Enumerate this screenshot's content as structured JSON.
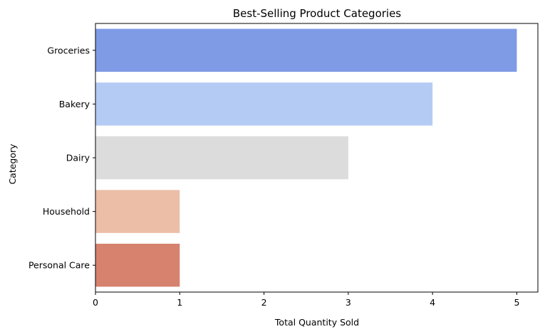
{
  "chart_data": {
    "type": "bar",
    "orientation": "horizontal",
    "title": "Best-Selling Product Categories",
    "xlabel": "Total Quantity Sold",
    "ylabel": "Category",
    "categories": [
      "Groceries",
      "Bakery",
      "Dairy",
      "Household",
      "Personal Care"
    ],
    "values": [
      5,
      4,
      3,
      1,
      1
    ],
    "colors": [
      "#7f9be6",
      "#b4cbf4",
      "#dcdcdc",
      "#ecbea7",
      "#d7826f"
    ],
    "xlim": [
      0,
      5.25
    ],
    "xticks": [
      0,
      1,
      2,
      3,
      4,
      5
    ],
    "grid": false,
    "legend": "none"
  }
}
